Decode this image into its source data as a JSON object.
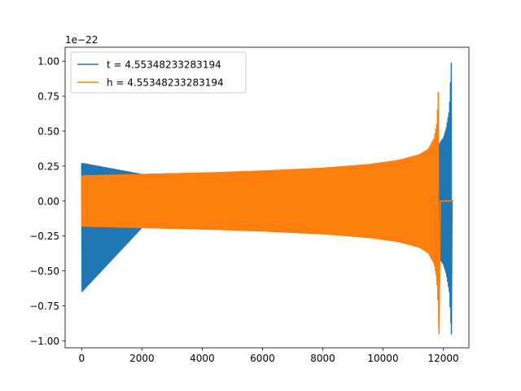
{
  "chart_data": {
    "type": "line",
    "title": "",
    "xlabel": "",
    "ylabel": "",
    "y_scale_label": "1e−22",
    "xlim": [
      -550,
      12850
    ],
    "ylim": [
      -1.05,
      1.1
    ],
    "xticks": [
      0,
      2000,
      4000,
      6000,
      8000,
      10000,
      12000
    ],
    "xtick_labels": [
      "0",
      "2000",
      "4000",
      "6000",
      "8000",
      "10000",
      "12000"
    ],
    "yticks": [
      -1.0,
      -0.75,
      -0.5,
      -0.25,
      0.0,
      0.25,
      0.5,
      0.75,
      1.0
    ],
    "ytick_labels": [
      "−1.00",
      "−0.75",
      "−0.50",
      "−0.25",
      "0.00",
      "0.25",
      "0.50",
      "0.75",
      "1.00"
    ],
    "grid": false,
    "legend_position": "upper-left",
    "series": [
      {
        "name": "t = 4.55348233283194",
        "color": "#1f77b4",
        "envelope_x": [
          0,
          2000,
          4000,
          6000,
          8000,
          10000,
          11000,
          11500,
          11850,
          11900,
          12000,
          12100,
          12200,
          12270
        ],
        "envelope_upper": [
          0.27,
          0.19,
          0.2,
          0.21,
          0.23,
          0.27,
          0.31,
          0.36,
          0.4,
          0.42,
          0.45,
          0.52,
          0.65,
          1.01
        ],
        "envelope_lower": [
          -0.65,
          -0.19,
          -0.2,
          -0.21,
          -0.23,
          -0.27,
          -0.31,
          -0.36,
          -0.4,
          -0.42,
          -0.45,
          -0.52,
          -0.65,
          -0.95
        ],
        "flat_after_x": 12290,
        "end_x": 12330
      },
      {
        "name": "h = 4.55348233283194",
        "color": "#ff7f0e",
        "envelope_x": [
          0,
          2000,
          4000,
          6000,
          8000,
          9500,
          10500,
          11200,
          11500,
          11700,
          11780,
          11830,
          11860
        ],
        "envelope_upper": [
          0.18,
          0.19,
          0.2,
          0.215,
          0.235,
          0.26,
          0.29,
          0.33,
          0.37,
          0.45,
          0.55,
          0.75,
          1.0
        ],
        "envelope_lower": [
          -0.18,
          -0.19,
          -0.2,
          -0.215,
          -0.235,
          -0.26,
          -0.29,
          -0.33,
          -0.37,
          -0.45,
          -0.55,
          -0.75,
          -0.95
        ],
        "flat_after_x": 11900,
        "end_x": 12290
      }
    ]
  }
}
